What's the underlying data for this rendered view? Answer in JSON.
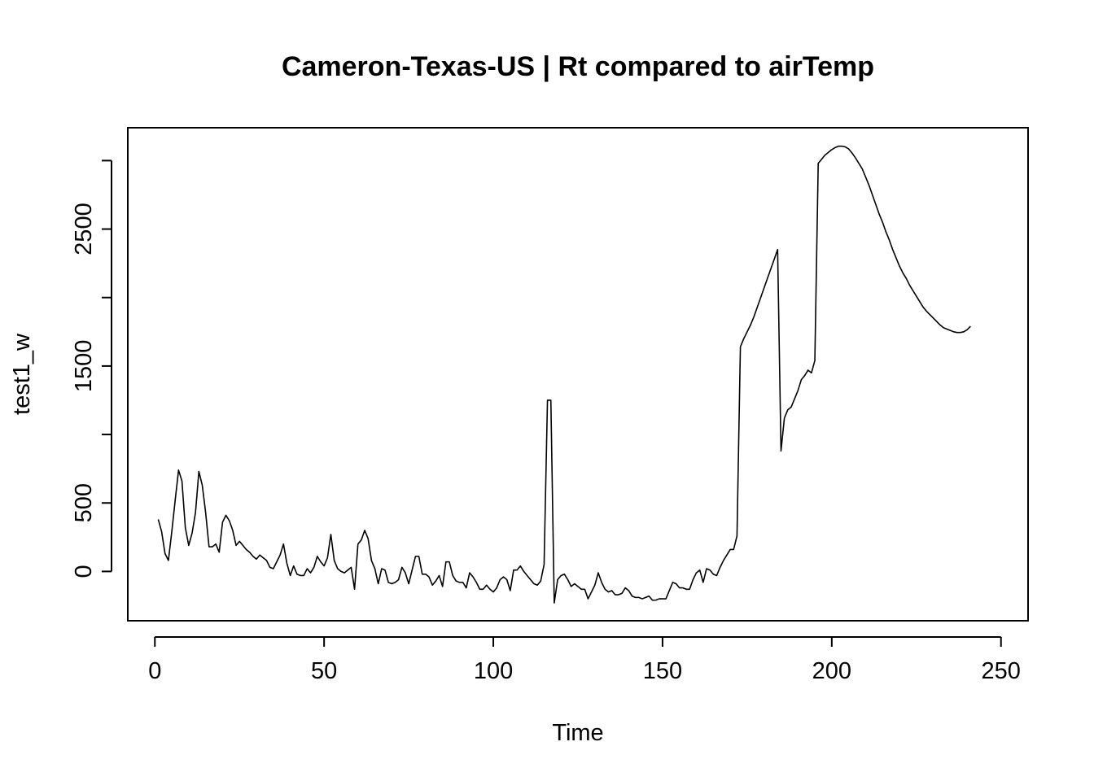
{
  "chart_data": {
    "type": "line",
    "title": "Cameron-Texas-US | Rt compared to airTemp",
    "xlabel": "Time",
    "ylabel": "test1_w",
    "xlim": [
      -8,
      258
    ],
    "ylim": [
      -360,
      3240
    ],
    "x_ticks": [
      0,
      50,
      100,
      150,
      200,
      250
    ],
    "y_ticks": [
      0,
      500,
      1000,
      1500,
      2000,
      2500,
      3000
    ],
    "y_tick_labels": [
      "0",
      "500",
      "",
      "1500",
      "",
      "2500",
      ""
    ],
    "grid": false,
    "series": [
      {
        "color": "#000000",
        "points": [
          [
            1,
            380
          ],
          [
            2,
            290
          ],
          [
            3,
            130
          ],
          [
            4,
            80
          ],
          [
            5,
            290
          ],
          [
            6,
            520
          ],
          [
            7,
            740
          ],
          [
            8,
            660
          ],
          [
            9,
            320
          ],
          [
            10,
            190
          ],
          [
            11,
            280
          ],
          [
            12,
            430
          ],
          [
            13,
            730
          ],
          [
            14,
            630
          ],
          [
            15,
            430
          ],
          [
            16,
            180
          ],
          [
            17,
            180
          ],
          [
            18,
            200
          ],
          [
            19,
            140
          ],
          [
            20,
            360
          ],
          [
            21,
            410
          ],
          [
            22,
            370
          ],
          [
            23,
            300
          ],
          [
            24,
            190
          ],
          [
            25,
            220
          ],
          [
            26,
            190
          ],
          [
            27,
            160
          ],
          [
            28,
            140
          ],
          [
            29,
            110
          ],
          [
            30,
            90
          ],
          [
            31,
            120
          ],
          [
            32,
            100
          ],
          [
            33,
            80
          ],
          [
            34,
            30
          ],
          [
            35,
            20
          ],
          [
            36,
            70
          ],
          [
            37,
            120
          ],
          [
            38,
            200
          ],
          [
            39,
            60
          ],
          [
            40,
            -30
          ],
          [
            41,
            40
          ],
          [
            42,
            -20
          ],
          [
            43,
            -30
          ],
          [
            44,
            -30
          ],
          [
            45,
            20
          ],
          [
            46,
            -10
          ],
          [
            47,
            30
          ],
          [
            48,
            110
          ],
          [
            49,
            70
          ],
          [
            50,
            40
          ],
          [
            51,
            100
          ],
          [
            52,
            270
          ],
          [
            53,
            80
          ],
          [
            54,
            20
          ],
          [
            55,
            0
          ],
          [
            56,
            -10
          ],
          [
            57,
            10
          ],
          [
            58,
            30
          ],
          [
            59,
            -130
          ],
          [
            60,
            200
          ],
          [
            61,
            230
          ],
          [
            62,
            300
          ],
          [
            63,
            240
          ],
          [
            64,
            80
          ],
          [
            65,
            20
          ],
          [
            66,
            -90
          ],
          [
            67,
            20
          ],
          [
            68,
            10
          ],
          [
            69,
            -80
          ],
          [
            70,
            -90
          ],
          [
            71,
            -80
          ],
          [
            72,
            -60
          ],
          [
            73,
            30
          ],
          [
            74,
            -10
          ],
          [
            75,
            -90
          ],
          [
            76,
            10
          ],
          [
            77,
            110
          ],
          [
            78,
            110
          ],
          [
            79,
            -20
          ],
          [
            80,
            -20
          ],
          [
            81,
            -40
          ],
          [
            82,
            -100
          ],
          [
            83,
            -70
          ],
          [
            84,
            -30
          ],
          [
            85,
            -110
          ],
          [
            86,
            70
          ],
          [
            87,
            70
          ],
          [
            88,
            -30
          ],
          [
            89,
            -70
          ],
          [
            90,
            -80
          ],
          [
            91,
            -80
          ],
          [
            92,
            -120
          ],
          [
            93,
            -10
          ],
          [
            94,
            -40
          ],
          [
            95,
            -80
          ],
          [
            96,
            -130
          ],
          [
            97,
            -130
          ],
          [
            98,
            -100
          ],
          [
            99,
            -130
          ],
          [
            100,
            -150
          ],
          [
            101,
            -120
          ],
          [
            102,
            -60
          ],
          [
            103,
            -40
          ],
          [
            104,
            -60
          ],
          [
            105,
            -140
          ],
          [
            106,
            10
          ],
          [
            107,
            10
          ],
          [
            108,
            40
          ],
          [
            109,
            0
          ],
          [
            110,
            -30
          ],
          [
            111,
            -60
          ],
          [
            112,
            -90
          ],
          [
            113,
            -100
          ],
          [
            114,
            -70
          ],
          [
            115,
            50
          ],
          [
            116,
            1250
          ],
          [
            117,
            1250
          ],
          [
            118,
            -230
          ],
          [
            119,
            -60
          ],
          [
            120,
            -30
          ],
          [
            121,
            -20
          ],
          [
            122,
            -60
          ],
          [
            123,
            -110
          ],
          [
            124,
            -90
          ],
          [
            125,
            -110
          ],
          [
            126,
            -130
          ],
          [
            127,
            -130
          ],
          [
            128,
            -200
          ],
          [
            129,
            -150
          ],
          [
            130,
            -100
          ],
          [
            131,
            -10
          ],
          [
            132,
            -80
          ],
          [
            133,
            -130
          ],
          [
            134,
            -150
          ],
          [
            135,
            -140
          ],
          [
            136,
            -170
          ],
          [
            137,
            -170
          ],
          [
            138,
            -160
          ],
          [
            139,
            -120
          ],
          [
            140,
            -140
          ],
          [
            141,
            -180
          ],
          [
            142,
            -190
          ],
          [
            143,
            -190
          ],
          [
            144,
            -200
          ],
          [
            145,
            -190
          ],
          [
            146,
            -180
          ],
          [
            147,
            -210
          ],
          [
            148,
            -210
          ],
          [
            149,
            -200
          ],
          [
            150,
            -200
          ],
          [
            151,
            -200
          ],
          [
            152,
            -140
          ],
          [
            153,
            -80
          ],
          [
            154,
            -90
          ],
          [
            155,
            -120
          ],
          [
            156,
            -120
          ],
          [
            157,
            -130
          ],
          [
            158,
            -130
          ],
          [
            159,
            -60
          ],
          [
            160,
            -10
          ],
          [
            161,
            10
          ],
          [
            162,
            -80
          ],
          [
            163,
            20
          ],
          [
            164,
            10
          ],
          [
            165,
            -20
          ],
          [
            166,
            -30
          ],
          [
            167,
            30
          ],
          [
            168,
            80
          ],
          [
            169,
            120
          ],
          [
            170,
            160
          ],
          [
            171,
            160
          ],
          [
            172,
            260
          ],
          [
            173,
            1640
          ],
          [
            174,
            1700
          ],
          [
            175,
            1750
          ],
          [
            176,
            1800
          ],
          [
            177,
            1860
          ],
          [
            178,
            1930
          ],
          [
            179,
            2000
          ],
          [
            180,
            2070
          ],
          [
            181,
            2140
          ],
          [
            182,
            2210
          ],
          [
            183,
            2280
          ],
          [
            184,
            2350
          ],
          [
            185,
            880
          ],
          [
            186,
            1120
          ],
          [
            187,
            1180
          ],
          [
            188,
            1200
          ],
          [
            189,
            1260
          ],
          [
            190,
            1320
          ],
          [
            191,
            1400
          ],
          [
            192,
            1430
          ],
          [
            193,
            1470
          ],
          [
            194,
            1450
          ],
          [
            195,
            1540
          ],
          [
            196,
            2980
          ],
          [
            197,
            3010
          ],
          [
            198,
            3040
          ],
          [
            199,
            3060
          ],
          [
            200,
            3080
          ],
          [
            201,
            3095
          ],
          [
            202,
            3105
          ],
          [
            203,
            3105
          ],
          [
            204,
            3100
          ],
          [
            205,
            3085
          ],
          [
            206,
            3055
          ],
          [
            207,
            3020
          ],
          [
            208,
            2980
          ],
          [
            209,
            2940
          ],
          [
            210,
            2880
          ],
          [
            211,
            2820
          ],
          [
            212,
            2750
          ],
          [
            213,
            2680
          ],
          [
            214,
            2610
          ],
          [
            215,
            2550
          ],
          [
            216,
            2480
          ],
          [
            217,
            2420
          ],
          [
            218,
            2350
          ],
          [
            219,
            2290
          ],
          [
            220,
            2230
          ],
          [
            221,
            2180
          ],
          [
            222,
            2140
          ],
          [
            223,
            2090
          ],
          [
            224,
            2050
          ],
          [
            225,
            2010
          ],
          [
            226,
            1970
          ],
          [
            227,
            1930
          ],
          [
            228,
            1900
          ],
          [
            229,
            1875
          ],
          [
            230,
            1850
          ],
          [
            231,
            1825
          ],
          [
            232,
            1800
          ],
          [
            233,
            1780
          ],
          [
            234,
            1770
          ],
          [
            235,
            1760
          ],
          [
            236,
            1750
          ],
          [
            237,
            1745
          ],
          [
            238,
            1745
          ],
          [
            239,
            1750
          ],
          [
            240,
            1765
          ],
          [
            241,
            1790
          ]
        ]
      }
    ]
  }
}
